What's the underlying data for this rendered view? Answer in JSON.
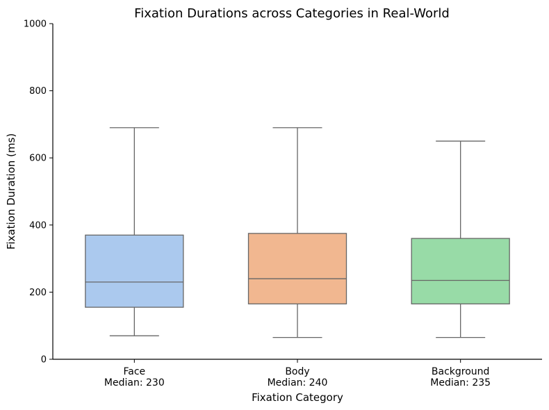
{
  "chart_data": {
    "type": "box",
    "title": "Fixation Durations across Categories in Real-World",
    "xlabel": "Fixation Category",
    "ylabel": "Fixation Duration (ms)",
    "ylim": [
      0,
      1000
    ],
    "yticks": [
      0,
      200,
      400,
      600,
      800,
      1000
    ],
    "grid": false,
    "categories": [
      "Face",
      "Body",
      "Background"
    ],
    "category_labels": [
      [
        "Face",
        "Median: 230"
      ],
      [
        "Body",
        "Median: 240"
      ],
      [
        "Background",
        "Median: 235"
      ]
    ],
    "boxes": [
      {
        "name": "Face",
        "whisker_low": 70,
        "q1": 155,
        "median": 230,
        "q3": 370,
        "whisker_high": 690,
        "color": "#abc9ee"
      },
      {
        "name": "Body",
        "whisker_low": 65,
        "q1": 165,
        "median": 240,
        "q3": 375,
        "whisker_high": 690,
        "color": "#f1b790"
      },
      {
        "name": "Background",
        "whisker_low": 65,
        "q1": 165,
        "median": 235,
        "q3": 360,
        "whisker_high": 650,
        "color": "#98dba7"
      }
    ],
    "line_color": "#666666"
  }
}
